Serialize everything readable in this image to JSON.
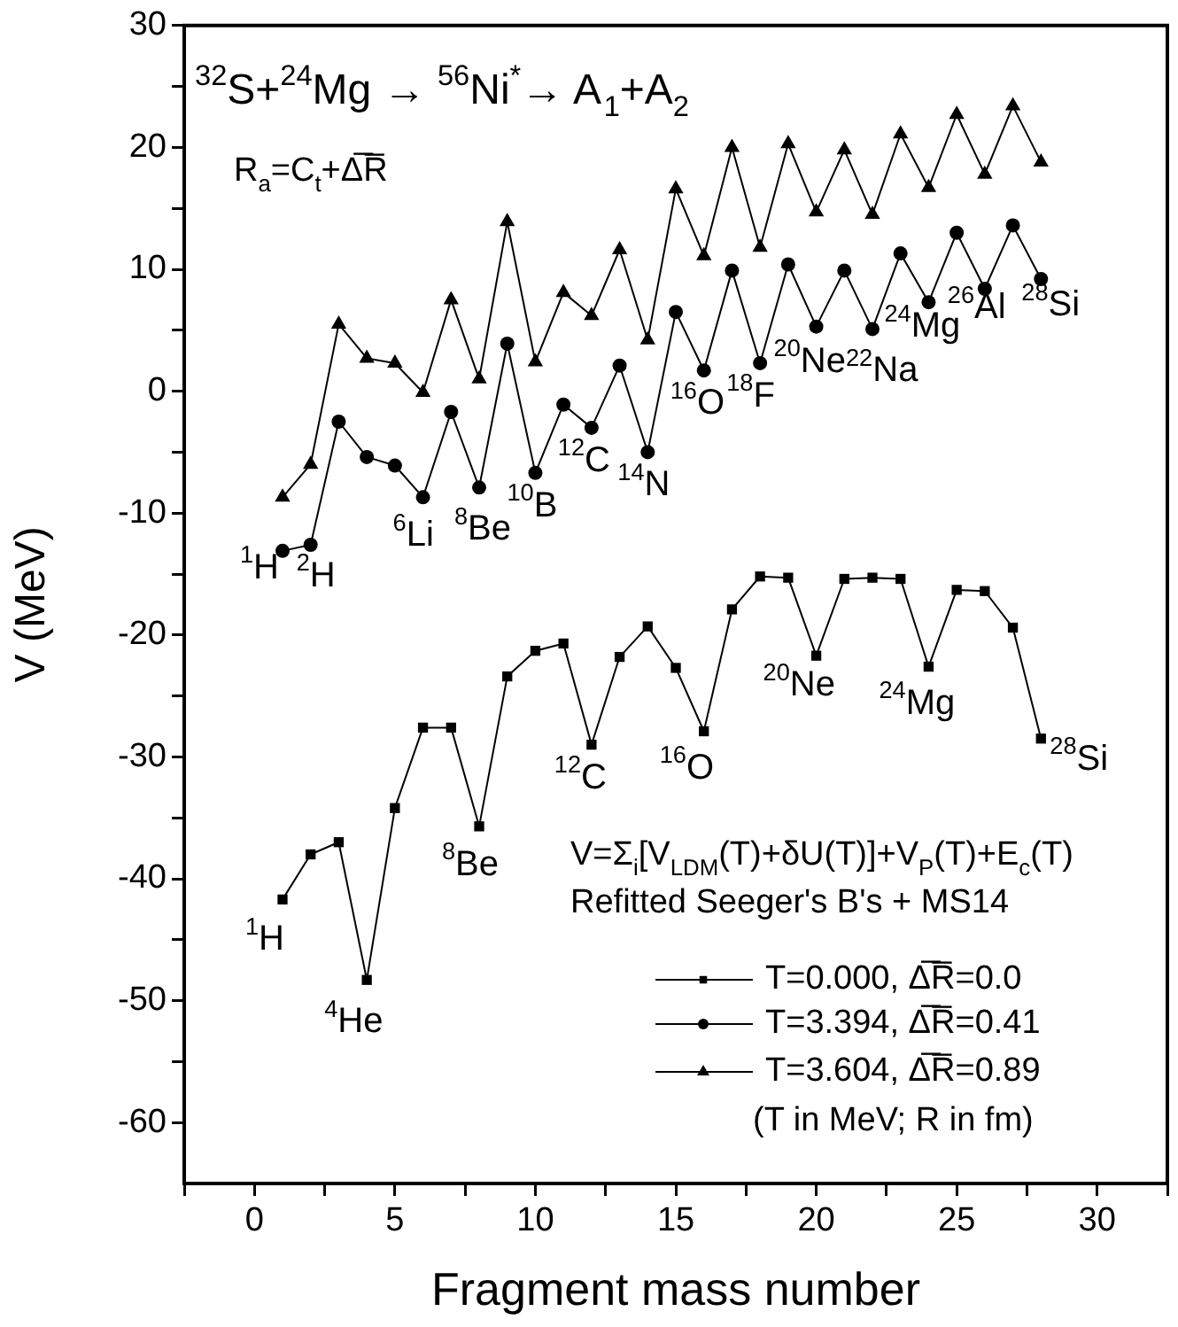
{
  "chart_data": {
    "type": "line",
    "xlabel": "Fragment mass number",
    "ylabel": "V (MeV)",
    "x": [
      1,
      2,
      3,
      4,
      5,
      6,
      7,
      8,
      9,
      10,
      11,
      12,
      13,
      14,
      15,
      16,
      17,
      18,
      19,
      20,
      21,
      22,
      23,
      24,
      25,
      26,
      27,
      28
    ],
    "series": [
      {
        "name": "T=0.000, Δ̅R̅=0.0",
        "color": "#000000",
        "marker": "square",
        "values": [
          -41.7,
          -38.0,
          -37.0,
          -48.3,
          -34.2,
          -27.6,
          -27.6,
          -35.7,
          -23.4,
          -21.3,
          -20.7,
          -29.0,
          -21.8,
          -19.3,
          -22.7,
          -27.9,
          -17.9,
          -15.2,
          -15.3,
          -21.7,
          -15.4,
          -15.3,
          -15.4,
          -22.6,
          -16.3,
          -16.4,
          -19.4,
          -28.5
        ]
      },
      {
        "name": "T=3.394, Δ̅R̅=0.41",
        "color": "#000000",
        "marker": "circle",
        "values": [
          -13.1,
          -12.6,
          -2.5,
          -5.4,
          -6.1,
          -8.7,
          -1.7,
          -7.9,
          3.9,
          -6.7,
          -1.1,
          -3.0,
          2.1,
          -5.0,
          6.5,
          1.7,
          9.9,
          2.3,
          10.4,
          5.3,
          9.9,
          5.1,
          11.3,
          7.3,
          13.0,
          8.4,
          13.6,
          9.2
        ]
      },
      {
        "name": "T=3.604, Δ̅R̅=0.89",
        "color": "#000000",
        "marker": "triangle",
        "values": [
          -8.7,
          -6.0,
          5.5,
          2.7,
          2.3,
          -0.1,
          7.5,
          1.0,
          13.9,
          2.4,
          8.1,
          6.2,
          11.6,
          4.2,
          16.6,
          11.1,
          20.0,
          11.8,
          20.3,
          14.7,
          19.8,
          14.5,
          21.1,
          16.7,
          22.7,
          17.8,
          23.4,
          18.8
        ]
      }
    ],
    "line_style": "solid",
    "legend": "bottom right",
    "grid": false,
    "xlim": [
      -2.5,
      32.5
    ],
    "xticks": [
      {
        "value": -2.5,
        "label": null
      },
      0,
      {
        "value": 2.5,
        "label": null
      },
      5,
      {
        "value": 7.5,
        "label": null
      },
      10,
      {
        "value": 12.5,
        "label": null
      },
      15,
      {
        "value": 17.5,
        "label": null
      },
      20,
      {
        "value": 22.5,
        "label": null
      },
      25,
      {
        "value": 27.5,
        "label": null
      },
      30,
      {
        "value": 32.5,
        "label": null
      }
    ],
    "ylim": [
      -65,
      30
    ],
    "yticks": [
      -60,
      {
        "value": -55,
        "label": null
      },
      -50,
      {
        "value": -45,
        "label": null
      },
      -40,
      {
        "value": -35,
        "label": null
      },
      -30,
      {
        "value": -25,
        "label": null
      },
      -20,
      {
        "value": -15,
        "label": null
      },
      -10,
      {
        "value": -5,
        "label": null
      },
      0,
      {
        "value": 5,
        "label": null
      },
      10,
      {
        "value": 15,
        "label": null
      },
      20,
      {
        "value": 25,
        "label": null
      },
      30
    ],
    "annotations": [
      "$^{32}$S+$^{24}$Mg → $^{56}$Ni$^{*}$→ A$_{1}$+A$_{2}$",
      "R$_{a}$=C$_{t}$+Δ̅R̅",
      "V=Σ$_{i}$[V$_{LDM}$(T)+δU(T)]+V$_{P}$(T)+E$_{c}$(T)",
      "Refitted Seeger's B's + MS14",
      "(T in MeV; R in fm)",
      {
        "text": "$^{1}$H",
        "x": 1,
        "y": -13.1
      },
      {
        "text": "$^{2}$H",
        "x": 2,
        "y": -12.6
      },
      {
        "text": "$^{6}$Li",
        "x": 6,
        "y": -8.7
      },
      {
        "text": "$^{8}$Be",
        "x": 8,
        "y": -7.9
      },
      {
        "text": "$^{10}$B",
        "x": 10,
        "y": -6.7
      },
      {
        "text": "$^{12}$C",
        "x": 12,
        "y": -3.0
      },
      {
        "text": "$^{14}$N",
        "x": 14,
        "y": -5.0
      },
      {
        "text": "$^{16}$O",
        "x": 16,
        "y": 1.7
      },
      {
        "text": "$^{18}$F",
        "x": 18,
        "y": 2.3
      },
      {
        "text": "$^{20}$Ne",
        "x": 20,
        "y": 5.3
      },
      {
        "text": "$^{22}$Na",
        "x": 22,
        "y": 5.1
      },
      {
        "text": "$^{24}$Mg",
        "x": 24,
        "y": 7.3
      },
      {
        "text": "$^{26}$Al",
        "x": 26,
        "y": 8.4
      },
      {
        "text": "$^{28}$Si",
        "x": 28,
        "y": 9.2
      },
      {
        "text": "$^{1}$H",
        "x": 1,
        "y": -41.7
      },
      {
        "text": "$^{4}$He",
        "x": 4,
        "y": -48.3
      },
      {
        "text": "$^{8}$Be",
        "x": 8,
        "y": -35.7
      },
      {
        "text": "$^{12}$C",
        "x": 12,
        "y": -29.0
      },
      {
        "text": "$^{16}$O",
        "x": 16,
        "y": -27.9
      },
      {
        "text": "$^{20}$Ne",
        "x": 20,
        "y": -21.7
      },
      {
        "text": "$^{24}$Mg",
        "x": 24,
        "y": -22.6
      },
      {
        "text": "$^{28}$Si",
        "x": 28,
        "y": -28.5
      }
    ]
  }
}
